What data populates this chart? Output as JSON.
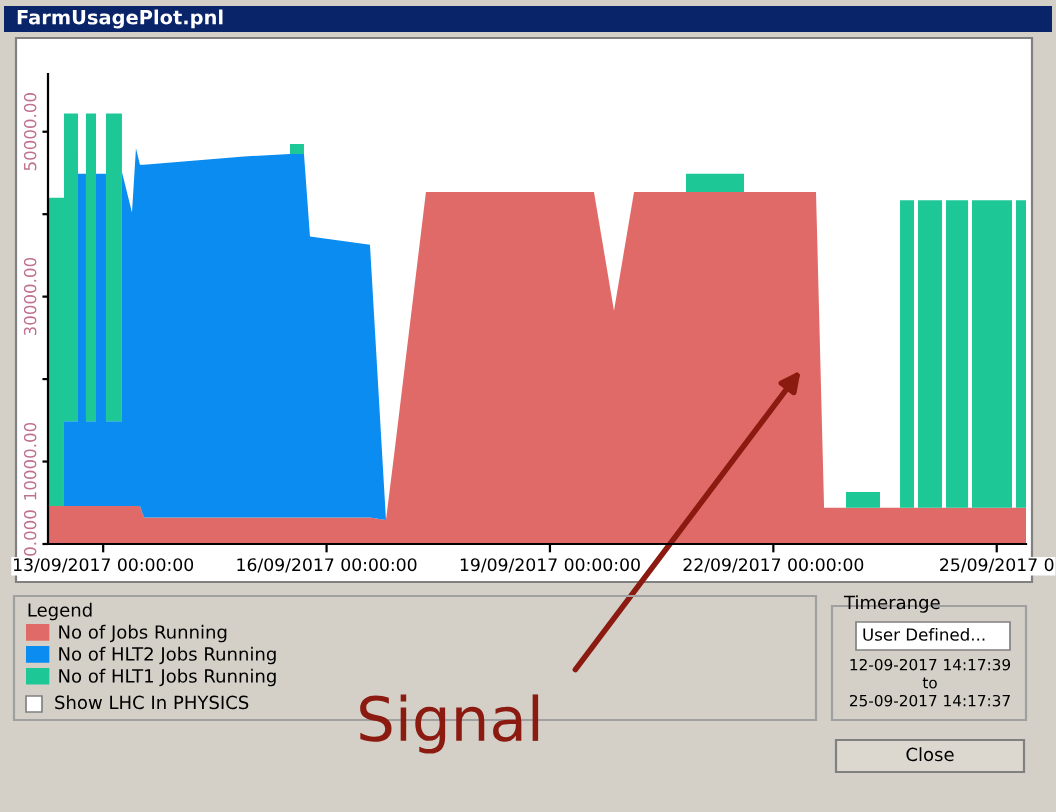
{
  "chart_data": {
    "type": "area",
    "stacked": true,
    "title": "FarmUsagePlot.pnl",
    "legend_title": "Legend",
    "legend": "bottom",
    "x": [
      "2017-09-12T06:13",
      "2017-09-12T11:22",
      "2017-09-12T11:22",
      "2017-09-12T15:53",
      "2017-09-12T15:53",
      "2017-09-12T18:27",
      "2017-09-12T18:27",
      "2017-09-12T21:41",
      "2017-09-12T21:41",
      "2017-09-13T00:54",
      "2017-09-13T00:54",
      "2017-09-13T06:03",
      "2017-09-13T06:03",
      "2017-09-13T09:17",
      "2017-09-13T10:34",
      "2017-09-13T11:51",
      "2017-09-13T13:09",
      "2017-09-14T21:23",
      "2017-09-15T12:13",
      "2017-09-15T12:13",
      "2017-09-15T16:43",
      "2017-09-15T16:43",
      "2017-09-15T18:39",
      "2017-09-16T13:59",
      "2017-09-16T19:09",
      "2017-09-16T21:44",
      "2017-09-17T08:02",
      "2017-09-19T14:11",
      "2017-09-19T20:38",
      "2017-09-20T03:06",
      "2017-09-20T19:51",
      "2017-09-20T19:51",
      "2017-09-21T14:33",
      "2017-09-21T14:33",
      "2017-09-22T13:45",
      "2017-09-22T16:21",
      "2017-09-22T23:25",
      "2017-09-22T23:25",
      "2017-09-23T10:23",
      "2017-09-23T10:23",
      "2017-09-23T16:50",
      "2017-09-23T16:50",
      "2017-09-23T21:20",
      "2017-09-23T21:20",
      "2017-09-23T22:38",
      "2017-09-23T22:38",
      "2017-09-24T06:22",
      "2017-09-24T06:22",
      "2017-09-24T07:39",
      "2017-09-24T07:39",
      "2017-09-24T14:46",
      "2017-09-24T14:46",
      "2017-09-24T16:02",
      "2017-09-24T16:02",
      "2017-09-25T04:55",
      "2017-09-25T04:55",
      "2017-09-25T06:13",
      "2017-09-25T06:13",
      "2017-09-25T09:26"
    ],
    "series": [
      {
        "name": "No of Jobs Running",
        "color": "#e06a68",
        "values": [
          4600,
          4600,
          4600,
          4600,
          4600,
          4600,
          4600,
          4600,
          4600,
          4600,
          4600,
          4600,
          4600,
          4600,
          4600,
          4600,
          3200,
          3200,
          3200,
          3200,
          3200,
          3200,
          3200,
          3200,
          2900,
          10700,
          42700,
          42700,
          28300,
          42700,
          42700,
          42700,
          42700,
          42700,
          42700,
          4400,
          4400,
          4400,
          4400,
          4400,
          4400,
          4400,
          4400,
          4400,
          4400,
          4400,
          4400,
          4400,
          4400,
          4400,
          4400,
          4400,
          4400,
          4400,
          4400,
          4400,
          4400,
          4400,
          4400
        ]
      },
      {
        "name": "No of HLT2 Jobs Running",
        "color": "#0a8cf0",
        "values": [
          0,
          0,
          10300,
          10300,
          40300,
          40300,
          10300,
          10300,
          40300,
          40300,
          10300,
          10300,
          40500,
          35600,
          43400,
          41400,
          42800,
          43800,
          44100,
          44100,
          44100,
          44100,
          34100,
          33100,
          0,
          0,
          0,
          0,
          0,
          0,
          0,
          0,
          0,
          0,
          0,
          0,
          0,
          0,
          0,
          0,
          0,
          0,
          0,
          0,
          0,
          0,
          0,
          0,
          0,
          0,
          0,
          0,
          0,
          0,
          0,
          0,
          0,
          0,
          0
        ]
      },
      {
        "name": "No of HLT1 Jobs Running",
        "color": "#1ec896",
        "values": [
          37400,
          37400,
          37300,
          37300,
          0,
          0,
          37300,
          37300,
          0,
          0,
          37300,
          37300,
          0,
          0,
          0,
          0,
          0,
          0,
          0,
          1200,
          1200,
          0,
          0,
          0,
          0,
          0,
          0,
          0,
          0,
          0,
          0,
          2200,
          2200,
          0,
          0,
          0,
          0,
          1900,
          1900,
          0,
          0,
          37300,
          37300,
          0,
          0,
          37300,
          37300,
          0,
          0,
          37300,
          37300,
          0,
          0,
          37300,
          37300,
          0,
          0,
          37300,
          37300
        ]
      }
    ],
    "xlim": [
      "2017-09-12T06:13",
      "2017-09-25T09:26"
    ],
    "xticks": [
      {
        "value": "2017-09-13",
        "label": "13/09/2017 00:00:00"
      },
      {
        "value": "2017-09-16",
        "label": "16/09/2017 00:00:00"
      },
      {
        "value": "2017-09-19",
        "label": "19/09/2017 00:00:00"
      },
      {
        "value": "2017-09-22",
        "label": "22/09/2017 00:00:00"
      },
      {
        "value": "2017-09-25",
        "label": "25/09/2017 0"
      }
    ],
    "ylim": [
      0,
      57000
    ],
    "yticks": [
      {
        "value": 0,
        "label": "0.000"
      },
      {
        "value": 10000,
        "label": "10000.00"
      },
      {
        "value": 20000,
        "label": null
      },
      {
        "value": 30000,
        "label": "30000.00"
      },
      {
        "value": 40000,
        "label": null
      },
      {
        "value": 50000,
        "label": "50000.00"
      }
    ],
    "annotations": [
      "Signal",
      "Show LHC In PHYSICS",
      "Timerange",
      "User Defined...",
      "12-09-2017 14:17:39",
      "to",
      "25-09-2017 14:17:37",
      "Close"
    ]
  }
}
